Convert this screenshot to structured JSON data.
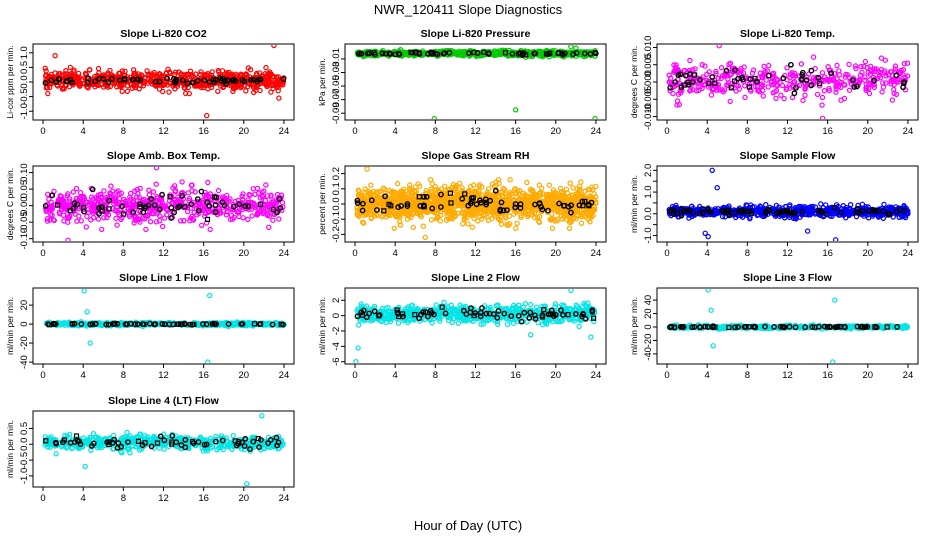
{
  "figure": {
    "title": "NWR_120411  Slope Diagnostics",
    "xlabel": "Hour of Day (UTC)"
  },
  "chart_data": [
    {
      "type": "scatter",
      "title": "Slope Li-820 CO2",
      "ylabel": "Li-cor ppm per min.",
      "xlim": [
        -1,
        25
      ],
      "ylim": [
        -1.3,
        1.3
      ],
      "xticks": [
        0,
        4,
        8,
        12,
        16,
        20,
        24
      ],
      "xtick_labels": [
        "0",
        "4",
        "8",
        "12",
        "16",
        "20",
        "24"
      ],
      "yticks": [
        -1.0,
        -0.5,
        0.0,
        0.5,
        1.0
      ],
      "ytick_labels": [
        "-1.0",
        "-0.5",
        "0.0",
        "0.5",
        "1.0"
      ],
      "colors": {
        "main": "#ff0000",
        "ref": "#000000"
      },
      "sample": {
        "n": 650,
        "center": 0.05,
        "spread": 0.28,
        "n_ref": 60,
        "ref_spread": 0.08,
        "outliers": [
          {
            "x": 23.0,
            "y": 1.25
          },
          {
            "x": 1.2,
            "y": 0.9
          },
          {
            "x": 16.3,
            "y": -1.15
          },
          {
            "x": 23.5,
            "y": -0.55
          }
        ]
      }
    },
    {
      "type": "scatter",
      "title": "Slope Li-820 Pressure",
      "ylabel": "kPa per min.",
      "xlim": [
        -1,
        25
      ],
      "ylim": [
        -0.1,
        0.012
      ],
      "xticks": [
        0,
        4,
        8,
        12,
        16,
        20,
        24
      ],
      "xtick_labels": [
        "0",
        "4",
        "8",
        "12",
        "16",
        "20",
        "24"
      ],
      "yticks": [
        -0.01,
        -0.03,
        -0.05,
        -0.07,
        -0.09
      ],
      "ytick_labels": [
        "-0.01",
        "-0.03",
        "-0.05",
        "-0.07",
        "-0.09"
      ],
      "colors": {
        "main": "#00cc00",
        "ref": "#000000"
      },
      "sample": {
        "n": 650,
        "center": -0.002,
        "spread": 0.0035,
        "n_ref": 60,
        "ref_spread": 0.0015,
        "outliers": [
          {
            "x": 7.9,
            "y": -0.098
          },
          {
            "x": 16.0,
            "y": -0.085
          },
          {
            "x": 23.9,
            "y": -0.098
          },
          {
            "x": 21.5,
            "y": 0.008
          },
          {
            "x": 22.0,
            "y": 0.006
          }
        ]
      }
    },
    {
      "type": "scatter",
      "title": "Slope Li-820 Temp.",
      "ylabel": "degrees C per min.",
      "xlim": [
        -1,
        25
      ],
      "ylim": [
        -0.011,
        0.011
      ],
      "xticks": [
        0,
        4,
        8,
        12,
        16,
        20,
        24
      ],
      "xtick_labels": [
        "0",
        "4",
        "8",
        "12",
        "16",
        "20",
        "24"
      ],
      "yticks": [
        -0.01,
        -0.005,
        0.0,
        0.005,
        0.01
      ],
      "ytick_labels": [
        "-0.010",
        "-0.005",
        "0.000",
        "0.005",
        "0.010"
      ],
      "colors": {
        "main": "#ff00ff",
        "ref": "#000000"
      },
      "sample": {
        "n": 400,
        "center": 0.0005,
        "spread": 0.0045,
        "n_ref": 50,
        "ref_spread": 0.003,
        "outliers": [
          {
            "x": 5.2,
            "y": 0.0105
          },
          {
            "x": 15.5,
            "y": -0.0105
          }
        ]
      }
    },
    {
      "type": "scatter",
      "title": "Slope Amb. Box Temp.",
      "ylabel": "degrees C per min.",
      "xlim": [
        -1,
        25
      ],
      "ylim": [
        -0.11,
        0.12
      ],
      "xticks": [
        0,
        4,
        8,
        12,
        16,
        20,
        24
      ],
      "xtick_labels": [
        "0",
        "4",
        "8",
        "12",
        "16",
        "20",
        "24"
      ],
      "yticks": [
        -0.1,
        -0.05,
        0.0,
        0.05,
        0.1
      ],
      "ytick_labels": [
        "-0.10",
        "-0.05",
        "0.00",
        "0.05",
        "0.10"
      ],
      "colors": {
        "main": "#ff00ff",
        "ref": "#000000"
      },
      "sample": {
        "n": 600,
        "center": 0.0,
        "spread": 0.045,
        "n_ref": 60,
        "ref_spread": 0.03,
        "outliers": [
          {
            "x": 2.5,
            "y": -0.105
          },
          {
            "x": 11.3,
            "y": 0.115
          }
        ]
      }
    },
    {
      "type": "scatter",
      "title": "Slope Gas Stream RH",
      "ylabel": "percent per min.",
      "xlim": [
        -1,
        25
      ],
      "ylim": [
        -0.25,
        0.25
      ],
      "xticks": [
        0,
        4,
        8,
        12,
        16,
        20,
        24
      ],
      "xtick_labels": [
        "0",
        "4",
        "8",
        "12",
        "16",
        "20",
        "24"
      ],
      "yticks": [
        -0.2,
        -0.1,
        0.0,
        0.1,
        0.2
      ],
      "ytick_labels": [
        "-0.2",
        "-0.1",
        "0.0",
        "0.1",
        "0.2"
      ],
      "colors": {
        "main": "#ffaa00",
        "ref": "#000000"
      },
      "sample": {
        "n": 1400,
        "center": 0.0,
        "spread": 0.1,
        "n_ref": 70,
        "ref_spread": 0.06,
        "outliers": [
          {
            "x": 1.2,
            "y": 0.23
          },
          {
            "x": 7.0,
            "y": -0.22
          }
        ]
      }
    },
    {
      "type": "scatter",
      "title": "Slope Sample Flow",
      "ylabel": "ml/min per min.",
      "xlim": [
        -1,
        25
      ],
      "ylim": [
        -1.3,
        2.2
      ],
      "xticks": [
        0,
        4,
        8,
        12,
        16,
        20,
        24
      ],
      "xtick_labels": [
        "0",
        "4",
        "8",
        "12",
        "16",
        "20",
        "24"
      ],
      "yticks": [
        -1.0,
        -0.5,
        0.0,
        0.5,
        1.0,
        1.5,
        2.0
      ],
      "ytick_labels": [
        "-1.0",
        "",
        "0.0",
        "",
        "1.0",
        "",
        "2.0"
      ],
      "colors": {
        "main": "#0000ff",
        "ref": "#000000"
      },
      "sample": {
        "n": 700,
        "center": 0.1,
        "spread": 0.22,
        "n_ref": 70,
        "ref_spread": 0.12,
        "outliers": [
          {
            "x": 4.5,
            "y": 2.0
          },
          {
            "x": 3.8,
            "y": -0.9
          },
          {
            "x": 4.1,
            "y": -1.05
          },
          {
            "x": 16.8,
            "y": -1.2
          },
          {
            "x": 5.0,
            "y": 1.2
          },
          {
            "x": 14.0,
            "y": -0.8
          }
        ]
      }
    },
    {
      "type": "scatter",
      "title": "Slope Line 1 Flow",
      "ylabel": "ml/min per min.",
      "xlim": [
        -1,
        25
      ],
      "ylim": [
        -42,
        38
      ],
      "xticks": [
        0,
        4,
        8,
        12,
        16,
        20,
        24
      ],
      "xtick_labels": [
        "0",
        "4",
        "8",
        "12",
        "16",
        "20",
        "24"
      ],
      "yticks": [
        -40,
        -20,
        0,
        20
      ],
      "ytick_labels": [
        "-40",
        "-20",
        "0",
        "20"
      ],
      "colors": {
        "main": "#00e5e5",
        "ref": "#000000"
      },
      "sample": {
        "n": 450,
        "center": 0.0,
        "spread": 1.6,
        "n_ref": 60,
        "ref_spread": 0.5,
        "outliers": [
          {
            "x": 4.1,
            "y": 35
          },
          {
            "x": 4.4,
            "y": 13
          },
          {
            "x": 4.7,
            "y": -20
          },
          {
            "x": 16.6,
            "y": 30
          },
          {
            "x": 16.4,
            "y": -40
          }
        ]
      }
    },
    {
      "type": "scatter",
      "title": "Slope Line 2 Flow",
      "ylabel": "ml/min per min.",
      "xlim": [
        -1,
        25
      ],
      "ylim": [
        -6.3,
        3.6
      ],
      "xticks": [
        0,
        4,
        8,
        12,
        16,
        20,
        24
      ],
      "xtick_labels": [
        "0",
        "4",
        "8",
        "12",
        "16",
        "20",
        "24"
      ],
      "yticks": [
        -6,
        -4,
        -2,
        0,
        2
      ],
      "ytick_labels": [
        "-6",
        "-4",
        "-2",
        "0",
        "2"
      ],
      "colors": {
        "main": "#00e5e5",
        "ref": "#000000"
      },
      "sample": {
        "n": 700,
        "center": 0.2,
        "spread": 1.0,
        "n_ref": 70,
        "ref_spread": 0.6,
        "outliers": [
          {
            "x": 0.1,
            "y": -6.0
          },
          {
            "x": 0.3,
            "y": -4.2
          },
          {
            "x": 21.5,
            "y": 3.3
          },
          {
            "x": 23.5,
            "y": -2.8
          },
          {
            "x": 17.5,
            "y": -2.5
          }
        ]
      }
    },
    {
      "type": "scatter",
      "title": "Slope Line 3 Flow",
      "ylabel": "ml/min per min.",
      "xlim": [
        -1,
        25
      ],
      "ylim": [
        -55,
        58
      ],
      "xticks": [
        0,
        4,
        8,
        12,
        16,
        20,
        24
      ],
      "xtick_labels": [
        "0",
        "4",
        "8",
        "12",
        "16",
        "20",
        "24"
      ],
      "yticks": [
        -40,
        -20,
        0,
        20,
        40
      ],
      "ytick_labels": [
        "-40",
        "-20",
        "0",
        "20",
        "40"
      ],
      "colors": {
        "main": "#00e5e5",
        "ref": "#000000"
      },
      "sample": {
        "n": 450,
        "center": 0.0,
        "spread": 2.0,
        "n_ref": 60,
        "ref_spread": 0.6,
        "outliers": [
          {
            "x": 4.1,
            "y": 55
          },
          {
            "x": 4.4,
            "y": 25
          },
          {
            "x": 4.6,
            "y": -28
          },
          {
            "x": 16.7,
            "y": 40
          },
          {
            "x": 16.5,
            "y": -52
          }
        ]
      }
    },
    {
      "type": "scatter",
      "title": "Slope Line 4 (LT) Flow",
      "ylabel": "ml/min per min.",
      "xlim": [
        -1,
        25
      ],
      "ylim": [
        -1.35,
        1.05
      ],
      "xticks": [
        0,
        4,
        8,
        12,
        16,
        20,
        24
      ],
      "xtick_labels": [
        "0",
        "4",
        "8",
        "12",
        "16",
        "20",
        "24"
      ],
      "yticks": [
        -1.0,
        -0.5,
        0.0,
        0.5
      ],
      "ytick_labels": [
        "-1.0",
        "-0.5",
        "0.0",
        "0.5"
      ],
      "colors": {
        "main": "#00e5e5",
        "ref": "#000000"
      },
      "sample": {
        "n": 550,
        "center": 0.05,
        "spread": 0.2,
        "n_ref": 60,
        "ref_spread": 0.15,
        "outliers": [
          {
            "x": 20.3,
            "y": -1.25
          },
          {
            "x": 4.2,
            "y": -0.7
          },
          {
            "x": 21.8,
            "y": 0.9
          },
          {
            "x": 1.3,
            "y": -0.3
          }
        ]
      }
    }
  ]
}
